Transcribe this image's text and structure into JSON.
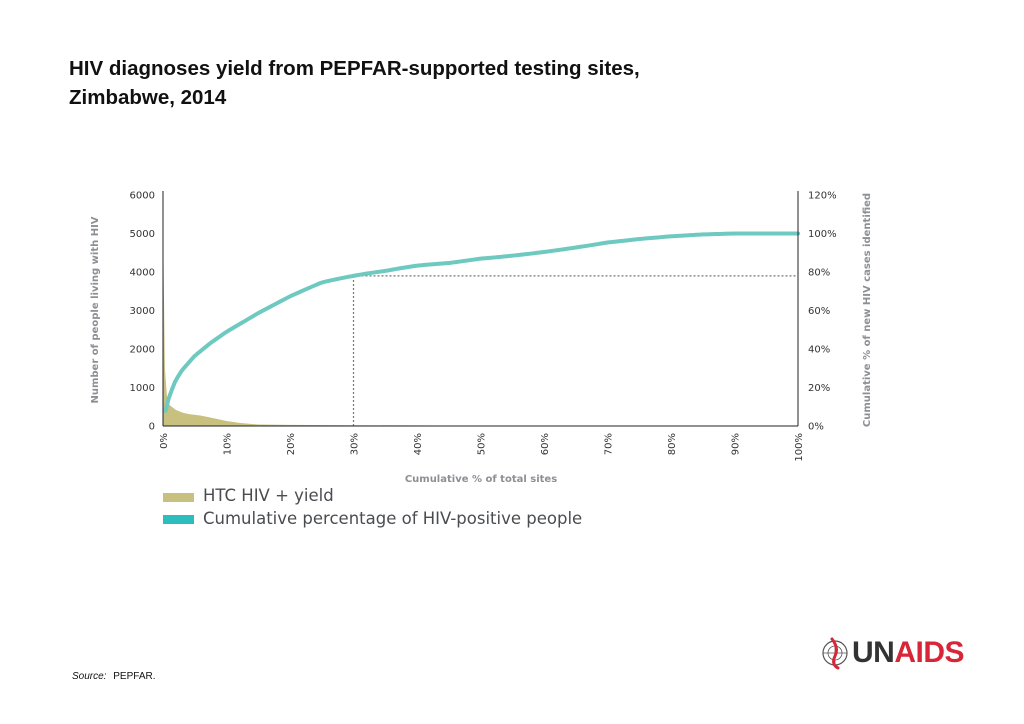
{
  "title": {
    "line1": "HIV diagnoses yield from PEPFAR-supported testing sites,",
    "line2": "Zimbabwe, 2014"
  },
  "chart_data": {
    "type": "area",
    "xlabel": "Cumulative % of total sites",
    "ylabel_left": "Number of people living with HIV",
    "ylabel_right": "Cumulative % of new HIV cases identified",
    "x_ticks": [
      "0%",
      "10%",
      "20%",
      "30%",
      "40%",
      "50%",
      "60%",
      "70%",
      "80%",
      "90%",
      "100%"
    ],
    "y_left_ticks": [
      "0",
      "1000",
      "2000",
      "3000",
      "4000",
      "5000",
      "6000"
    ],
    "y_right_ticks": [
      "0%",
      "20%",
      "40%",
      "60%",
      "80%",
      "100%",
      "120%"
    ],
    "ylim_left": [
      0,
      6000
    ],
    "ylim_right": [
      0,
      120
    ],
    "xlim": [
      0,
      100
    ],
    "series": [
      {
        "name": "HTC HIV + yield",
        "color": "#c8c07e",
        "type": "area",
        "axis": "left",
        "points": [
          [
            0,
            5200
          ],
          [
            0.3,
            1500
          ],
          [
            0.6,
            800
          ],
          [
            1,
            550
          ],
          [
            2,
            420
          ],
          [
            3,
            350
          ],
          [
            4,
            310
          ],
          [
            6,
            270
          ],
          [
            8,
            200
          ],
          [
            10,
            130
          ],
          [
            12,
            80
          ],
          [
            15,
            40
          ],
          [
            20,
            30
          ],
          [
            30,
            20
          ],
          [
            40,
            15
          ],
          [
            47,
            10
          ],
          [
            47,
            0
          ]
        ]
      },
      {
        "name": "Cumulative percentage of HIV-positive people",
        "color": "#6ec9c0",
        "type": "line",
        "axis": "right",
        "points": [
          [
            0,
            0
          ],
          [
            0.5,
            8
          ],
          [
            1,
            14
          ],
          [
            2,
            22
          ],
          [
            3,
            27
          ],
          [
            5,
            34
          ],
          [
            7.5,
            40
          ],
          [
            10,
            45
          ],
          [
            15,
            53
          ],
          [
            20,
            60
          ],
          [
            25,
            66
          ],
          [
            30,
            78
          ],
          [
            35,
            72
          ],
          [
            40,
            76
          ],
          [
            45,
            79
          ],
          [
            50,
            83
          ],
          [
            55,
            86
          ],
          [
            60,
            89
          ],
          [
            65,
            92
          ],
          [
            70,
            95
          ],
          [
            75,
            97
          ],
          [
            80,
            98.5
          ],
          [
            85,
            99.5
          ],
          [
            90,
            100
          ],
          [
            95,
            100
          ],
          [
            100,
            100
          ]
        ]
      }
    ],
    "reference": {
      "x": 30,
      "y_right": 78
    },
    "grid": false,
    "legend_position": "bottom-left"
  },
  "source": {
    "label": "Source:",
    "text": "PEPFAR."
  },
  "logo": {
    "text_un": "UN",
    "text_aids": "AIDS",
    "color_un": "#333333",
    "color_aids": "#d72638"
  }
}
